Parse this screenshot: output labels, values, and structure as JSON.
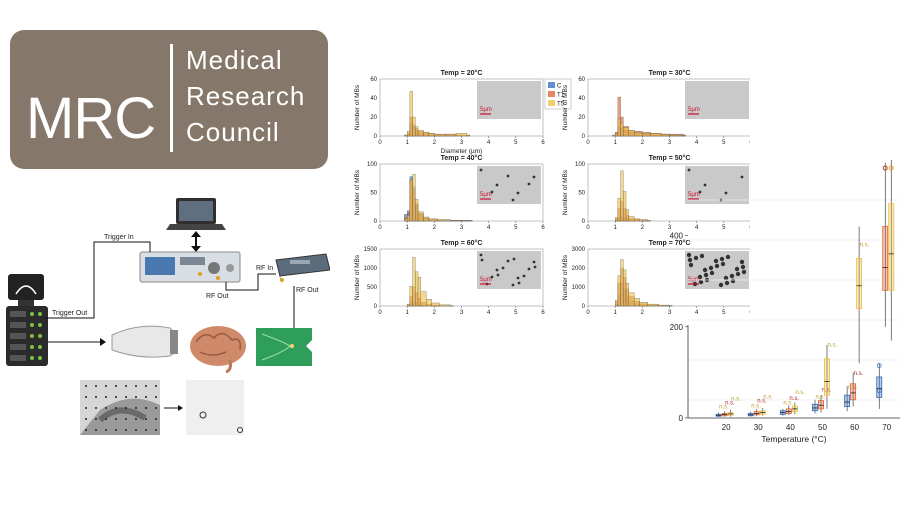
{
  "logo": {
    "abbr": "MRC",
    "line1": "Medical",
    "line2": "Research",
    "line3": "Council"
  },
  "setup": {
    "trigger_in": "Trigger In",
    "trigger_out": "Trigger Out",
    "rf_in": "RF In",
    "rf_out_1": "RF Out",
    "rf_out_2": "RF Out"
  },
  "histograms": {
    "ylabel": "Number of MBs",
    "xlabel": "Diameter (µm)",
    "scale_label": "5µm",
    "legend": [
      "C",
      "T1",
      "T5"
    ],
    "colors": {
      "C": "#3b73c2",
      "T1": "#e0693d",
      "T5": "#f0c24a"
    },
    "x_ticks": [
      "0",
      "1",
      "2",
      "3",
      "4",
      "5",
      "6"
    ]
  },
  "boxplot": {
    "xlabel": "Temperature (°C)",
    "y_ticks": [
      "0",
      "200",
      "400"
    ],
    "x_ticks": [
      "20",
      "30",
      "40",
      "50",
      "60",
      "70"
    ],
    "sig_label": "n.s."
  },
  "chart_data": [
    {
      "type": "bar",
      "title": "Temp = 20°C",
      "xlabel": "Diameter (µm)",
      "ylabel": "Number of MBs",
      "xlim": [
        0,
        6
      ],
      "ylim": [
        0,
        60
      ],
      "y_ticks": [
        "0",
        "20",
        "40",
        "60"
      ],
      "x": [
        0.9,
        1.0,
        1.1,
        1.2,
        1.3,
        1.4,
        1.6,
        1.8,
        2.0,
        2.4,
        2.8,
        3.2
      ],
      "series": [
        {
          "name": "C",
          "values": [
            0,
            2,
            14,
            10,
            6,
            3,
            2,
            1,
            1,
            1,
            0,
            0
          ]
        },
        {
          "name": "T1",
          "values": [
            1,
            3,
            20,
            12,
            8,
            5,
            4,
            3,
            2,
            2,
            1,
            1
          ]
        },
        {
          "name": "T5",
          "values": [
            1,
            5,
            47,
            20,
            10,
            6,
            4,
            3,
            2,
            2,
            3,
            1
          ]
        }
      ]
    },
    {
      "type": "bar",
      "title": "Temp = 30°C",
      "xlim": [
        0,
        6
      ],
      "ylim": [
        0,
        60
      ],
      "y_ticks": [
        "0",
        "20",
        "40",
        "60"
      ],
      "x": [
        0.9,
        1.0,
        1.1,
        1.2,
        1.3,
        1.5,
        1.7,
        2.0,
        2.3,
        2.7,
        3.0,
        3.5
      ],
      "series": [
        {
          "name": "C",
          "values": [
            0,
            2,
            10,
            8,
            6,
            4,
            3,
            2,
            3,
            2,
            1,
            1
          ]
        },
        {
          "name": "T1",
          "values": [
            1,
            4,
            41,
            20,
            10,
            6,
            5,
            4,
            3,
            2,
            2,
            1
          ]
        },
        {
          "name": "T5",
          "values": [
            1,
            3,
            18,
            14,
            9,
            6,
            4,
            3,
            3,
            2,
            1,
            1
          ]
        }
      ]
    },
    {
      "type": "bar",
      "title": "Temp = 40°C",
      "xlim": [
        0,
        6
      ],
      "ylim": [
        0,
        100
      ],
      "y_ticks": [
        "0",
        "50",
        "100"
      ],
      "x": [
        0.9,
        1.0,
        1.1,
        1.2,
        1.3,
        1.4,
        1.6,
        1.8,
        2.1,
        2.6,
        3.3
      ],
      "series": [
        {
          "name": "C",
          "values": [
            12,
            18,
            78,
            60,
            30,
            14,
            6,
            3,
            2,
            1,
            1
          ]
        },
        {
          "name": "T1",
          "values": [
            6,
            14,
            70,
            55,
            28,
            12,
            5,
            3,
            2,
            1,
            0
          ]
        },
        {
          "name": "T5",
          "values": [
            4,
            10,
            72,
            82,
            38,
            16,
            7,
            4,
            2,
            1,
            1
          ]
        }
      ]
    },
    {
      "type": "bar",
      "title": "Temp = 50°C",
      "xlim": [
        0,
        6
      ],
      "ylim": [
        0,
        100
      ],
      "y_ticks": [
        "0",
        "50",
        "100"
      ],
      "x": [
        1.0,
        1.1,
        1.2,
        1.3,
        1.4,
        1.5,
        1.7,
        1.9,
        2.2
      ],
      "series": [
        {
          "name": "C",
          "values": [
            2,
            6,
            10,
            6,
            3,
            2,
            1,
            1,
            0
          ]
        },
        {
          "name": "T1",
          "values": [
            4,
            22,
            35,
            22,
            10,
            5,
            3,
            2,
            1
          ]
        },
        {
          "name": "T5",
          "values": [
            6,
            40,
            88,
            52,
            20,
            8,
            4,
            2,
            1
          ]
        }
      ]
    },
    {
      "type": "bar",
      "title": "Temp = 60°C",
      "xlim": [
        0,
        6
      ],
      "ylim": [
        0,
        1500
      ],
      "y_ticks": [
        "0",
        "500",
        "1000",
        "1500"
      ],
      "x": [
        1.0,
        1.1,
        1.2,
        1.3,
        1.4,
        1.5,
        1.7,
        1.9,
        2.2,
        2.6
      ],
      "series": [
        {
          "name": "C",
          "values": [
            10,
            60,
            120,
            80,
            40,
            20,
            10,
            5,
            3,
            2
          ]
        },
        {
          "name": "T1",
          "values": [
            30,
            250,
            500,
            350,
            200,
            100,
            50,
            25,
            10,
            5
          ]
        },
        {
          "name": "T5",
          "values": [
            50,
            520,
            1280,
            900,
            760,
            380,
            180,
            80,
            30,
            10
          ]
        }
      ]
    },
    {
      "type": "bar",
      "title": "Temp = 70°C",
      "xlim": [
        0,
        6
      ],
      "ylim": [
        0,
        3000
      ],
      "y_ticks": [
        "0",
        "1000",
        "2000",
        "3000"
      ],
      "x": [
        1.0,
        1.1,
        1.2,
        1.3,
        1.4,
        1.5,
        1.7,
        1.9,
        2.2,
        2.6,
        3.0
      ],
      "series": [
        {
          "name": "C",
          "values": [
            100,
            600,
            1200,
            900,
            500,
            250,
            120,
            60,
            30,
            15,
            8
          ]
        },
        {
          "name": "T1",
          "values": [
            200,
            1200,
            2000,
            1500,
            900,
            500,
            250,
            120,
            60,
            30,
            15
          ]
        },
        {
          "name": "T5",
          "values": [
            300,
            1600,
            2450,
            1900,
            1200,
            700,
            400,
            200,
            100,
            50,
            25
          ]
        }
      ]
    },
    {
      "type": "box",
      "xlabel": "Temperature (°C)",
      "ylim": [
        0,
        500
      ],
      "categories": [
        "20",
        "30",
        "40",
        "50",
        "60",
        "70"
      ],
      "series": [
        {
          "name": "C",
          "values": [
            [
              2,
              4,
              6,
              8,
              12
            ],
            [
              3,
              5,
              7,
              10,
              14
            ],
            [
              5,
              8,
              12,
              16,
              20
            ],
            [
              10,
              16,
              22,
              30,
              40
            ],
            [
              15,
              25,
              35,
              50,
              70
            ],
            [
              20,
              45,
              65,
              90,
              120
            ]
          ]
        },
        {
          "name": "T1",
          "values": [
            [
              3,
              5,
              8,
              10,
              15
            ],
            [
              4,
              7,
              10,
              14,
              20
            ],
            [
              6,
              10,
              14,
              20,
              28
            ],
            [
              12,
              20,
              28,
              38,
              50
            ],
            [
              25,
              40,
              55,
              75,
              100
            ],
            [
              200,
              280,
              330,
              420,
              560
            ]
          ]
        },
        {
          "name": "T5",
          "values": [
            [
              3,
              6,
              9,
              12,
              18
            ],
            [
              5,
              8,
              12,
              16,
              22
            ],
            [
              8,
              14,
              20,
              26,
              34
            ],
            [
              20,
              50,
              80,
              130,
              160
            ],
            [
              120,
              240,
              290,
              350,
              420
            ],
            [
              170,
              280,
              360,
              470,
              620
            ]
          ]
        }
      ]
    }
  ]
}
